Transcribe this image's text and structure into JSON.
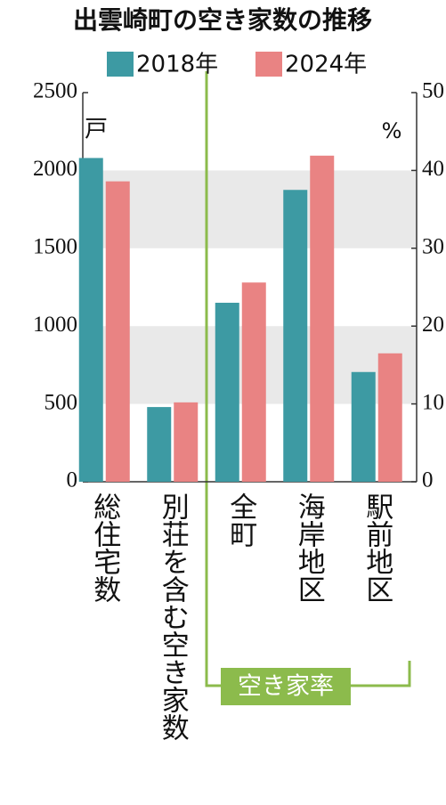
{
  "chart_data": {
    "type": "bar",
    "title": "出雲崎町の空き家数の推移",
    "categories": [
      "総住宅数",
      "別荘を含む空き家数",
      "全町",
      "海岸地区",
      "駅前地区"
    ],
    "series": [
      {
        "name": "2018年",
        "color": "#3d9aa3",
        "values": [
          2080,
          480,
          null,
          null,
          null
        ]
      },
      {
        "name": "2024年",
        "color": "#e98383",
        "values": [
          1930,
          510,
          null,
          null,
          null
        ]
      },
      {
        "axis": "y2",
        "color": "#3d9aa3",
        "values": [
          null,
          null,
          23,
          37.5,
          14.1
        ]
      },
      {
        "axis": "y2",
        "color": "#e98383",
        "values": [
          null,
          null,
          25.6,
          41.9,
          16.5
        ]
      }
    ],
    "ylabel": "戸",
    "y2label": "%",
    "ylim": [
      0,
      2500
    ],
    "yticks": [
      0,
      500,
      1000,
      1500,
      2000,
      2500
    ],
    "y2lim": [
      0,
      50
    ],
    "y2ticks": [
      0,
      10,
      20,
      30,
      40,
      50
    ],
    "grid_bands": true,
    "rate_label": "空き家率"
  }
}
